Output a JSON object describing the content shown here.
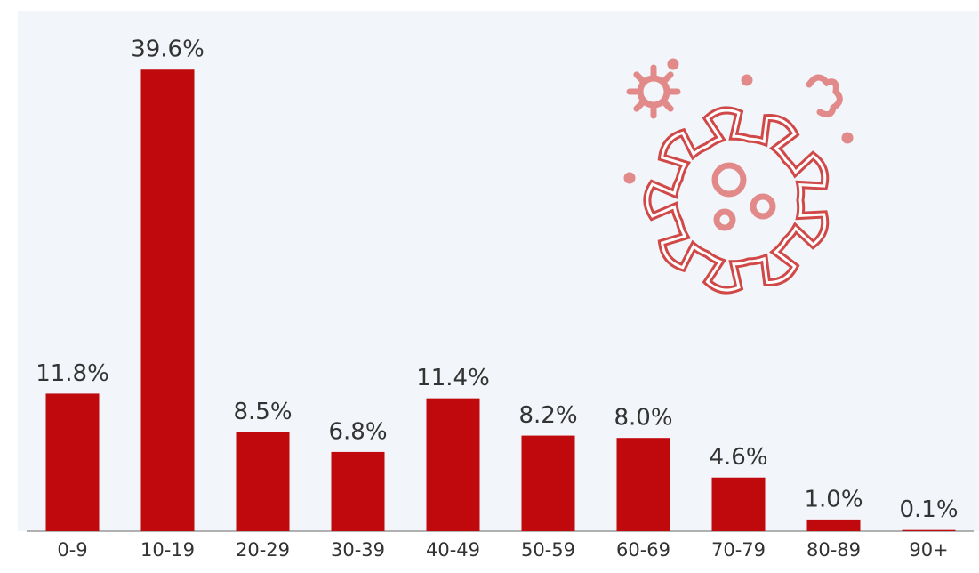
{
  "chart_data": {
    "type": "bar",
    "categories": [
      "0-9",
      "10-19",
      "20-29",
      "30-39",
      "40-49",
      "50-59",
      "60-69",
      "70-79",
      "80-89",
      "90+"
    ],
    "values": [
      11.8,
      39.6,
      8.5,
      6.8,
      11.4,
      8.2,
      8.0,
      4.6,
      1.0,
      0.1
    ],
    "value_labels": [
      "11.8%",
      "39.6%",
      "8.5%",
      "6.8%",
      "11.4%",
      "8.2%",
      "8.0%",
      "4.6%",
      "1.0%",
      "0.1%"
    ],
    "color": "#c0090c"
  }
}
